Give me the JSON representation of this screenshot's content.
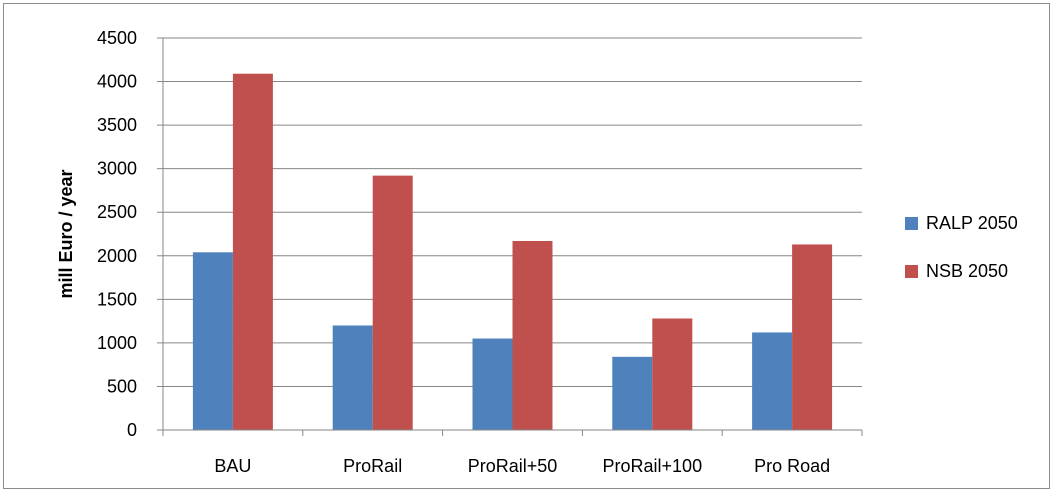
{
  "chart_data": {
    "type": "bar",
    "title": "",
    "xlabel": "",
    "ylabel": "mill Euro / year",
    "ylim": [
      0,
      4500
    ],
    "yticks": [
      0,
      500,
      1000,
      1500,
      2000,
      2500,
      3000,
      3500,
      4000,
      4500
    ],
    "grid": true,
    "legend_position": "right",
    "categories": [
      "BAU",
      "ProRail",
      "ProRail+50",
      "ProRail+100",
      "Pro Road"
    ],
    "series": [
      {
        "name": "RALP 2050",
        "color": "#4f81bd",
        "values": [
          2040,
          1200,
          1050,
          840,
          1120
        ]
      },
      {
        "name": "NSB 2050",
        "color": "#c0504d",
        "values": [
          4090,
          2920,
          2170,
          1280,
          2130
        ]
      }
    ]
  }
}
